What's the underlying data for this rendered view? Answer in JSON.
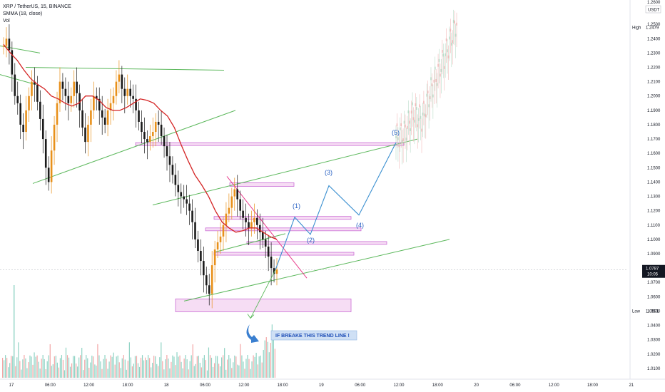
{
  "header": {
    "title": "XRP / TetherUS, 15, BINANCE",
    "indicator": "SMMA (18, close)",
    "volume_label": "Vol"
  },
  "price_axis": {
    "currency": "USDT",
    "high_label": "High",
    "low_label": "Low",
    "ticks": [
      "1.2500",
      "1.2400",
      "1.2300",
      "1.2200",
      "1.2100",
      "1.2000",
      "1.1900",
      "1.1800",
      "1.1700",
      "1.1600",
      "1.1500",
      "1.1400",
      "1.1300",
      "1.1200",
      "1.1100",
      "1.1000",
      "1.0900",
      "1.0800",
      "1.0700",
      "1.0600",
      "1.0500",
      "1.0400",
      "1.0300",
      "1.0200",
      "1.0100"
    ],
    "top_partial": "1.2600"
  },
  "chart_data": {
    "type": "candlestick",
    "symbol": "XRP / TetherUS",
    "interval": "15",
    "exchange": "BINANCE",
    "ylim": [
      1.005,
      1.264
    ],
    "high": 1.2479,
    "low": 1.0501,
    "last_price": 1.0787,
    "countdown": "10:05",
    "x_ticks": [
      "17",
      "06:00",
      "12:00",
      "18:00",
      "18",
      "06:00",
      "12:00",
      "18:00",
      "19",
      "06:00",
      "12:00",
      "18:00",
      "20",
      "06:00",
      "12:00",
      "18:00",
      "21"
    ],
    "close_path": [
      1.235,
      1.24,
      1.232,
      1.215,
      1.2,
      1.195,
      1.18,
      1.175,
      1.19,
      1.2,
      1.21,
      1.208,
      1.196,
      1.184,
      1.17,
      1.15,
      1.14,
      1.162,
      1.18,
      1.195,
      1.21,
      1.205,
      1.2,
      1.195,
      1.2,
      1.21,
      1.202,
      1.19,
      1.178,
      1.168,
      1.18,
      1.19,
      1.2,
      1.198,
      1.19,
      1.185,
      1.18,
      1.19,
      1.195,
      1.2,
      1.21,
      1.215,
      1.205,
      1.2,
      1.205,
      1.2,
      1.198,
      1.19,
      1.182,
      1.175,
      1.17,
      1.168,
      1.172,
      1.175,
      1.182,
      1.18,
      1.172,
      1.165,
      1.158,
      1.152,
      1.145,
      1.138,
      1.133,
      1.13,
      1.128,
      1.125,
      1.12,
      1.112,
      1.1,
      1.092,
      1.085,
      1.075,
      1.068,
      1.062,
      1.082,
      1.093,
      1.098,
      1.102,
      1.11,
      1.118,
      1.122,
      1.13,
      1.135,
      1.128,
      1.12,
      1.115,
      1.112,
      1.108,
      1.112,
      1.115,
      1.11,
      1.105,
      1.1,
      1.095,
      1.088,
      1.08,
      1.076,
      1.079
    ],
    "smma_path": [
      1.236,
      1.23,
      1.225,
      1.218,
      1.212,
      1.208,
      1.205,
      1.2,
      1.198,
      1.195,
      1.193,
      1.195,
      1.2,
      1.2,
      1.197,
      1.192,
      1.19,
      1.19,
      1.192,
      1.195,
      1.198,
      1.197,
      1.195,
      1.19,
      1.186,
      1.178,
      1.166,
      1.155,
      1.145,
      1.138,
      1.13,
      1.12,
      1.112,
      1.108,
      1.105,
      1.106,
      1.108,
      1.108,
      1.105,
      1.102,
      1.1
    ],
    "projection_path": [
      1.0787,
      1.1155,
      1.1035,
      1.1375,
      1.117,
      1.1675,
      1.171,
      1.185,
      1.18,
      1.2,
      1.215,
      1.23,
      1.248
    ],
    "wave_labels": [
      "(1)",
      "(2)",
      "(3)",
      "(4)",
      "(5)"
    ],
    "annotation": "IF BREAKE THIS TREND LINE !",
    "zones": [
      {
        "from": 1.1655,
        "to": 1.1675
      },
      {
        "from": 1.137,
        "to": 1.1395
      },
      {
        "from": 1.114,
        "to": 1.116
      },
      {
        "from": 1.106,
        "to": 1.108
      },
      {
        "from": 1.0965,
        "to": 1.0985
      },
      {
        "from": 1.089,
        "to": 1.091
      },
      {
        "from": 1.0495,
        "to": 1.0585
      }
    ]
  },
  "colors": {
    "candle": "#e8901a",
    "candle_down": "#1a1a1a",
    "smma": "#d42424",
    "trend": "#5cb85c",
    "zone_fill": "#f6ddf4",
    "zone_stroke": "#c45bd0",
    "projection": "#3a8fd0",
    "pink": "#e83e8c",
    "volume": "#8fd3c4",
    "price_tag": "#131722"
  }
}
